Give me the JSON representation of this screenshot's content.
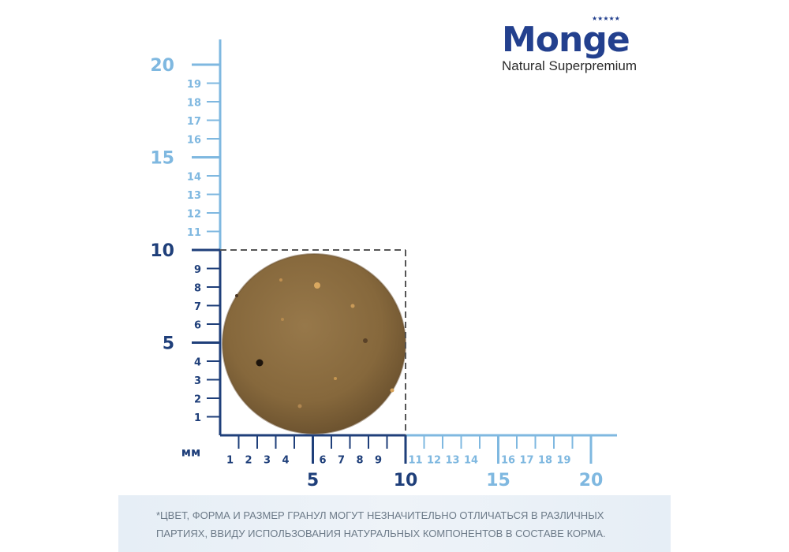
{
  "brand": {
    "name": "Monge",
    "stars": "★★★★★",
    "tagline": "Natural Superpremium"
  },
  "unit_label": "мм",
  "axis_ticks": {
    "major": [
      "5",
      "10",
      "15",
      "20"
    ],
    "minor": [
      "1",
      "2",
      "3",
      "4",
      "6",
      "7",
      "8",
      "9",
      "11",
      "12",
      "13",
      "14",
      "16",
      "17",
      "18",
      "19"
    ]
  },
  "object": {
    "name": "kibble",
    "width_mm": 10,
    "height_mm": 10
  },
  "colors": {
    "dark_axis": "#1f3f7a",
    "light_axis": "#7fb8e0",
    "kibble": "#8a6a3a",
    "dashed_box": "#555555"
  },
  "disclaimer": "*ЦВЕТ, ФОРМА И РАЗМЕР ГРАНУЛ МОГУТ НЕЗНАЧИТЕЛЬНО ОТЛИЧАТЬСЯ В РАЗЛИЧНЫХ ПАРТИЯХ, ВВИДУ ИСПОЛЬЗОВАНИЯ НАТУРАЛЬНЫХ КОМПОНЕНТОВ В СОСТАВЕ КОРМА."
}
